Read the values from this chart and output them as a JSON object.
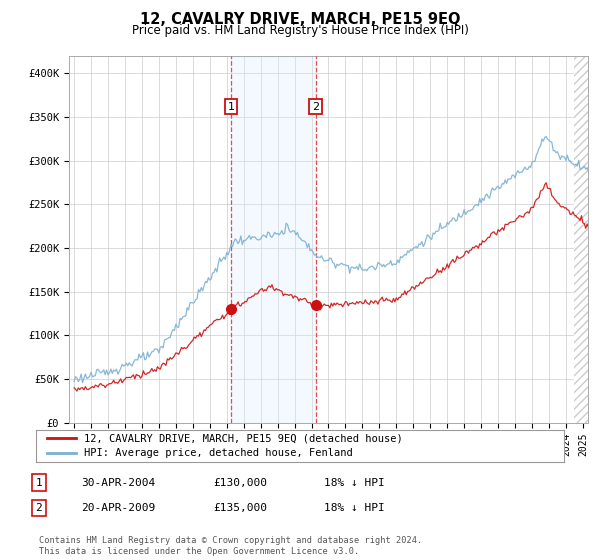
{
  "title": "12, CAVALRY DRIVE, MARCH, PE15 9EQ",
  "subtitle": "Price paid vs. HM Land Registry's House Price Index (HPI)",
  "legend_line1": "12, CAVALRY DRIVE, MARCH, PE15 9EQ (detached house)",
  "legend_line2": "HPI: Average price, detached house, Fenland",
  "transaction1_label": "1",
  "transaction1_date": "30-APR-2004",
  "transaction1_price": "£130,000",
  "transaction1_hpi": "18% ↓ HPI",
  "transaction2_label": "2",
  "transaction2_date": "20-APR-2009",
  "transaction2_price": "£135,000",
  "transaction2_hpi": "18% ↓ HPI",
  "footnote": "Contains HM Land Registry data © Crown copyright and database right 2024.\nThis data is licensed under the Open Government Licence v3.0.",
  "xmin": 1994.7,
  "xmax": 2025.3,
  "ymin": 0,
  "ymax": 420000,
  "hpi_color": "#7ab0d4",
  "price_color": "#cc1111",
  "shading_color": "#ddeeff",
  "transaction_vline_color": "#dd3333",
  "background_color": "#ffffff",
  "grid_color": "#cccccc",
  "hatch_color": "#cccccc"
}
